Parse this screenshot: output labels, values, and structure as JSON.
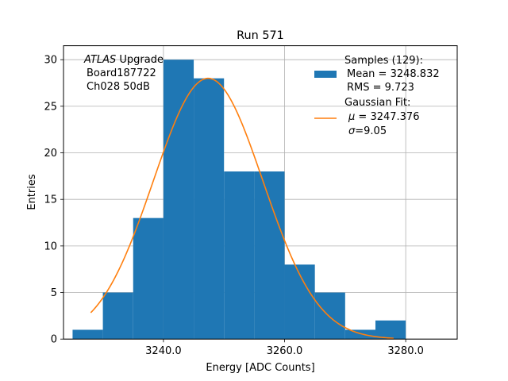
{
  "chart_data": {
    "type": "bar",
    "title": "Run 571",
    "xlabel": "Energy [ADC Counts]",
    "ylabel": "Entries",
    "xlim": [
      3223.5,
      3288.5
    ],
    "ylim": [
      0,
      31.5
    ],
    "grid": true,
    "x_ticks": [
      3240,
      3260,
      3280
    ],
    "x_tick_labels": [
      "3240.0",
      "3260.0",
      "3280.0"
    ],
    "y_ticks": [
      0,
      5,
      10,
      15,
      20,
      25,
      30
    ],
    "y_tick_labels": [
      "0",
      "5",
      "10",
      "15",
      "20",
      "25",
      "30"
    ],
    "bins": [
      {
        "x0": 3225,
        "x1": 3230,
        "count": 1
      },
      {
        "x0": 3230,
        "x1": 3235,
        "count": 5
      },
      {
        "x0": 3235,
        "x1": 3240,
        "count": 13
      },
      {
        "x0": 3240,
        "x1": 3245,
        "count": 30
      },
      {
        "x0": 3245,
        "x1": 3250,
        "count": 28
      },
      {
        "x0": 3250,
        "x1": 3255,
        "count": 18
      },
      {
        "x0": 3255,
        "x1": 3260,
        "count": 18
      },
      {
        "x0": 3260,
        "x1": 3265,
        "count": 8
      },
      {
        "x0": 3265,
        "x1": 3270,
        "count": 5
      },
      {
        "x0": 3270,
        "x1": 3275,
        "count": 1
      },
      {
        "x0": 3275,
        "x1": 3280,
        "count": 2
      },
      {
        "x0": 3280,
        "x1": 3285,
        "count": 0
      }
    ],
    "fit": {
      "mu": 3247.376,
      "sigma": 9.05,
      "amplitude": 28.0,
      "x_range": [
        3228,
        3278
      ]
    },
    "annotation": {
      "italic": "ATLAS",
      "rest": " Upgrade",
      "line2": "Board187722",
      "line3": "Ch028 50dB"
    },
    "legend": {
      "location": "top-right",
      "samples": {
        "line1": "Samples (129):",
        "line2": "Mean = 3248.832",
        "line3": "RMS = 9.723"
      },
      "fit": {
        "line1": "Gaussian Fit:",
        "mu_symbol": "μ",
        "mu_text": " = 3247.376",
        "sigma_symbol": "σ",
        "sigma_text": "=9.05"
      }
    },
    "colors": {
      "bars": "#1f77b4",
      "fit": "#ff7f0e",
      "grid": "#b0b0b0"
    }
  }
}
